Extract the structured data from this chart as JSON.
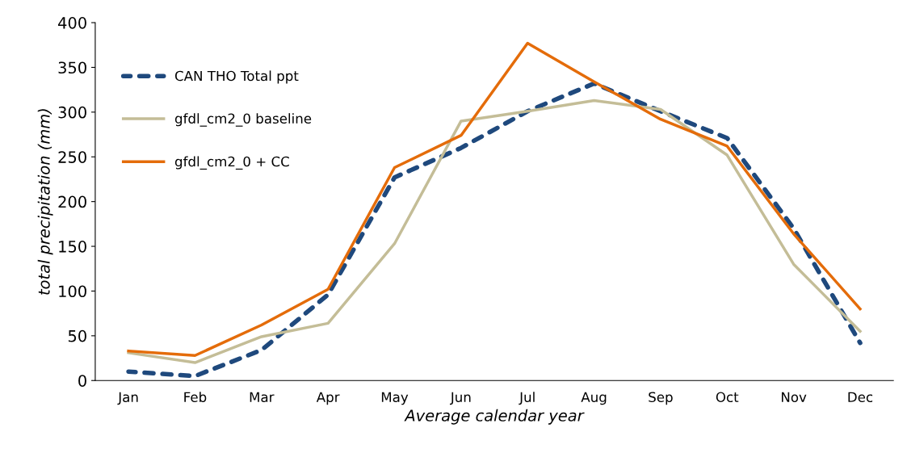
{
  "chart_data": {
    "type": "line",
    "xlabel": "Average calendar year",
    "ylabel": "total precipitation (mm)",
    "categories": [
      "Jan",
      "Feb",
      "Mar",
      "Apr",
      "May",
      "Jun",
      "Jul",
      "Aug",
      "Sep",
      "Oct",
      "Nov",
      "Dec"
    ],
    "series": [
      {
        "name": "CAN THO Total ppt",
        "color": "#1f497d",
        "line_style": "dashed",
        "values": [
          10,
          5,
          34,
          96,
          227,
          260,
          301,
          332,
          301,
          271,
          170,
          42
        ]
      },
      {
        "name": "gfdl_cm2_0 baseline",
        "color": "#c4bd97",
        "line_style": "solid",
        "values": [
          31,
          20,
          49,
          64,
          153,
          290,
          301,
          313,
          303,
          252,
          130,
          55
        ]
      },
      {
        "name": "gfdl_cm2_0 + CC",
        "color": "#e46c0a",
        "line_style": "solid",
        "values": [
          33,
          28,
          62,
          102,
          238,
          274,
          377,
          334,
          292,
          262,
          164,
          80
        ]
      }
    ],
    "ylim": [
      0,
      400
    ],
    "yticks": [
      0,
      50,
      100,
      150,
      200,
      250,
      300,
      350,
      400
    ],
    "grid": false,
    "legend": "upper left"
  }
}
